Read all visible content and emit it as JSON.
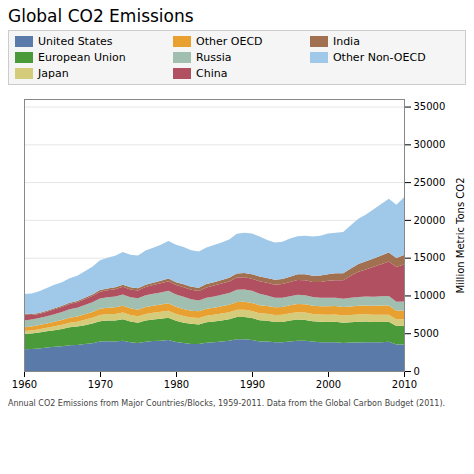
{
  "chart_data": {
    "type": "area",
    "title": "Global CO2 Emissions",
    "subtitle": "Annual CO2 Emissions from Major Countries/Blocks, 1959-2011. Data from the Global Carbon Budget (2011).",
    "ylabel": "Million Metric Tons CO2",
    "stacked": true,
    "grid": true,
    "legend": "top",
    "x": [
      1960,
      1961,
      1962,
      1963,
      1964,
      1965,
      1966,
      1967,
      1968,
      1969,
      1970,
      1971,
      1972,
      1973,
      1974,
      1975,
      1976,
      1977,
      1978,
      1979,
      1980,
      1981,
      1982,
      1983,
      1984,
      1985,
      1986,
      1987,
      1988,
      1989,
      1990,
      1991,
      1992,
      1993,
      1994,
      1995,
      1996,
      1997,
      1998,
      1999,
      2000,
      2001,
      2002,
      2003,
      2004,
      2005,
      2006,
      2007,
      2008,
      2009,
      2010
    ],
    "series": [
      {
        "name": "United States",
        "color": "#5a7aaa",
        "values": [
          2890,
          2900,
          2990,
          3100,
          3200,
          3270,
          3400,
          3430,
          3570,
          3680,
          3900,
          3940,
          3900,
          4000,
          3800,
          3700,
          3870,
          3970,
          4020,
          4090,
          3850,
          3700,
          3590,
          3570,
          3750,
          3800,
          3900,
          4000,
          4200,
          4200,
          4100,
          3920,
          3900,
          3800,
          3800,
          3920,
          4020,
          4010,
          3890,
          3820,
          3800,
          3800,
          3690,
          3760,
          3780,
          3800,
          3800,
          3800,
          3860,
          3520,
          3500
        ]
      },
      {
        "name": "European Union",
        "color": "#4a9a3a",
        "values": [
          2000,
          2050,
          2100,
          2150,
          2200,
          2300,
          2400,
          2450,
          2500,
          2600,
          2700,
          2750,
          2800,
          2850,
          2750,
          2700,
          2800,
          2850,
          2900,
          2950,
          2800,
          2700,
          2650,
          2600,
          2700,
          2750,
          2800,
          2850,
          2950,
          2950,
          2900,
          2800,
          2750,
          2700,
          2700,
          2750,
          2800,
          2750,
          2700,
          2700,
          2700,
          2720,
          2700,
          2700,
          2730,
          2750,
          2700,
          2700,
          2650,
          2450,
          2500
        ]
      },
      {
        "name": "Japan",
        "color": "#d4cc7a",
        "values": [
          400,
          420,
          450,
          480,
          520,
          560,
          600,
          640,
          700,
          760,
          820,
          840,
          860,
          890,
          850,
          840,
          870,
          890,
          910,
          940,
          900,
          870,
          840,
          830,
          860,
          880,
          900,
          920,
          960,
          960,
          950,
          930,
          920,
          920,
          940,
          960,
          960,
          970,
          960,
          950,
          950,
          960,
          950,
          960,
          960,
          950,
          950,
          950,
          940,
          880,
          860
        ]
      },
      {
        "name": "Other OECD",
        "color": "#e8a030",
        "values": [
          500,
          520,
          540,
          560,
          590,
          620,
          660,
          690,
          730,
          770,
          820,
          840,
          870,
          910,
          890,
          880,
          920,
          940,
          960,
          980,
          950,
          930,
          900,
          900,
          920,
          950,
          970,
          990,
          1030,
          1040,
          1040,
          1040,
          1030,
          1020,
          1040,
          1060,
          1090,
          1100,
          1100,
          1110,
          1130,
          1130,
          1120,
          1130,
          1150,
          1170,
          1190,
          1220,
          1210,
          1120,
          1140
        ]
      },
      {
        "name": "Russia",
        "color": "#a0bfb0",
        "values": [
          900,
          920,
          940,
          970,
          1010,
          1060,
          1110,
          1160,
          1220,
          1280,
          1340,
          1380,
          1420,
          1470,
          1480,
          1510,
          1560,
          1580,
          1610,
          1650,
          1610,
          1640,
          1500,
          1440,
          1460,
          1490,
          1530,
          1560,
          1620,
          1640,
          1620,
          1550,
          1400,
          1270,
          1220,
          1200,
          1230,
          1200,
          1130,
          1120,
          1130,
          1100,
          1100,
          1150,
          1170,
          1180,
          1200,
          1220,
          1250,
          1190,
          1200
        ]
      },
      {
        "name": "China",
        "color": "#b05060",
        "values": [
          780,
          600,
          520,
          580,
          640,
          660,
          700,
          720,
          780,
          840,
          900,
          940,
          980,
          1020,
          1030,
          1040,
          1100,
          1140,
          1200,
          1260,
          1260,
          1260,
          1260,
          1260,
          1370,
          1430,
          1470,
          1510,
          1600,
          1610,
          1610,
          1650,
          1680,
          1720,
          1800,
          1880,
          1940,
          1970,
          2000,
          2080,
          2220,
          2300,
          2440,
          2900,
          3350,
          3600,
          3950,
          4250,
          4570,
          4600,
          4900
        ]
      },
      {
        "name": "India",
        "color": "#a07050",
        "values": [
          120,
          125,
          130,
          140,
          150,
          160,
          170,
          180,
          195,
          210,
          225,
          240,
          255,
          270,
          285,
          295,
          310,
          325,
          345,
          365,
          375,
          390,
          405,
          420,
          440,
          460,
          490,
          520,
          550,
          580,
          600,
          620,
          640,
          660,
          690,
          720,
          760,
          800,
          840,
          860,
          890,
          920,
          950,
          980,
          1020,
          1060,
          1100,
          1150,
          1200,
          1200,
          1250
        ]
      },
      {
        "name": "Other Non-OECD",
        "color": "#a0c8e8",
        "values": [
          2610,
          2715,
          2880,
          3020,
          3090,
          3130,
          3240,
          3330,
          3505,
          3660,
          3945,
          4070,
          4175,
          4340,
          4305,
          4335,
          4530,
          4605,
          4755,
          4965,
          4955,
          4910,
          4825,
          4780,
          4860,
          4930,
          4960,
          5050,
          5240,
          5320,
          5370,
          5290,
          5030,
          4930,
          4930,
          5040,
          5050,
          5100,
          5180,
          5260,
          5380,
          5370,
          5450,
          5720,
          5990,
          6190,
          6510,
          6810,
          7120,
          7040,
          7650
        ]
      }
    ],
    "xlim": [
      1960,
      2010
    ],
    "xticks": [
      1960,
      1970,
      1980,
      1990,
      2000,
      2010
    ],
    "ylim": [
      0,
      36000
    ],
    "yticks": [
      0,
      5000,
      10000,
      15000,
      20000,
      25000,
      30000,
      35000
    ]
  }
}
